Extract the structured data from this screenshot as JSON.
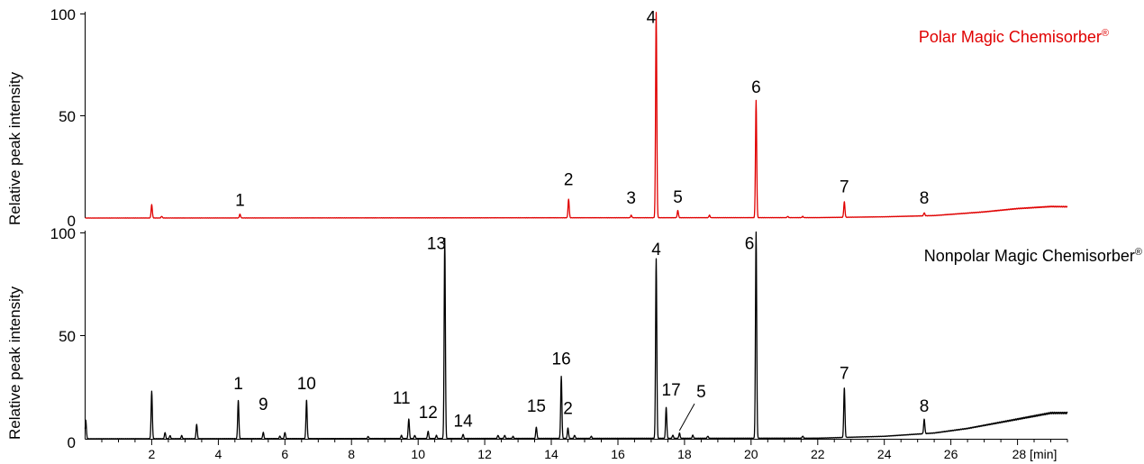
{
  "chart_data": [
    {
      "type": "line",
      "panel": "top",
      "legend_text": "Polar Magic Chemisorber",
      "legend_sup": "®",
      "legend_placement": "top-right",
      "color": "#e00000",
      "ylabel": "Relative peak intensity",
      "y_ticks": [
        "100",
        "50",
        "0"
      ],
      "ylim": [
        0,
        100
      ],
      "xlim": [
        0,
        29.5
      ],
      "baseline": 0,
      "peaks": [
        {
          "x": 2.0,
          "y": 6.5
        },
        {
          "x": 2.3,
          "y": 0.8
        },
        {
          "x": 4.65,
          "y": 1.8
        },
        {
          "x": 14.52,
          "y": 9
        },
        {
          "x": 16.4,
          "y": 1.2
        },
        {
          "x": 17.15,
          "y": 100
        },
        {
          "x": 17.8,
          "y": 3.5
        },
        {
          "x": 18.75,
          "y": 1.2
        },
        {
          "x": 20.15,
          "y": 57
        },
        {
          "x": 21.1,
          "y": 0.6
        },
        {
          "x": 21.55,
          "y": 0.6
        },
        {
          "x": 22.8,
          "y": 7.5
        },
        {
          "x": 25.2,
          "y": 1.5
        }
      ],
      "drift": [
        {
          "x": 0,
          "y": 0
        },
        {
          "x": 22,
          "y": 0.2
        },
        {
          "x": 24,
          "y": 0.6
        },
        {
          "x": 25.5,
          "y": 1.2
        },
        {
          "x": 27,
          "y": 3.0
        },
        {
          "x": 28,
          "y": 4.6
        },
        {
          "x": 29,
          "y": 5.6
        },
        {
          "x": 29.5,
          "y": 5.5
        }
      ],
      "peak_labels": [
        {
          "text": "1",
          "x": 4.65,
          "y": 6
        },
        {
          "text": "2",
          "x": 14.52,
          "y": 16
        },
        {
          "text": "3",
          "x": 16.4,
          "y": 7
        },
        {
          "text": "4",
          "x": 17.0,
          "y": 95
        },
        {
          "text": "5",
          "x": 17.8,
          "y": 7.5
        },
        {
          "text": "6",
          "x": 20.15,
          "y": 61
        },
        {
          "text": "7",
          "x": 22.8,
          "y": 12.5
        },
        {
          "text": "8",
          "x": 25.2,
          "y": 7
        }
      ]
    },
    {
      "type": "line",
      "panel": "bottom",
      "legend_text": "Nonpolar Magic Chemisorber",
      "legend_sup": "®",
      "legend_placement": "top-right",
      "color": "#000000",
      "ylabel": "Relative peak intensity",
      "y_ticks": [
        "100",
        "50",
        "0"
      ],
      "ylim": [
        0,
        100
      ],
      "xlim": [
        0,
        29.5
      ],
      "baseline": 0,
      "peaks": [
        {
          "x": 0.02,
          "y": 9
        },
        {
          "x": 2.0,
          "y": 23
        },
        {
          "x": 2.4,
          "y": 3
        },
        {
          "x": 2.55,
          "y": 1.5
        },
        {
          "x": 2.9,
          "y": 1.5
        },
        {
          "x": 3.35,
          "y": 7
        },
        {
          "x": 4.6,
          "y": 18.5
        },
        {
          "x": 5.35,
          "y": 3
        },
        {
          "x": 5.85,
          "y": 1.2
        },
        {
          "x": 6.0,
          "y": 3
        },
        {
          "x": 6.65,
          "y": 18.5
        },
        {
          "x": 8.5,
          "y": 1
        },
        {
          "x": 9.5,
          "y": 1.5
        },
        {
          "x": 9.72,
          "y": 9.5
        },
        {
          "x": 9.9,
          "y": 1.5
        },
        {
          "x": 10.3,
          "y": 3.5
        },
        {
          "x": 10.55,
          "y": 1.5
        },
        {
          "x": 10.8,
          "y": 97
        },
        {
          "x": 11.35,
          "y": 2
        },
        {
          "x": 12.4,
          "y": 1.5
        },
        {
          "x": 12.6,
          "y": 1.5
        },
        {
          "x": 12.85,
          "y": 1
        },
        {
          "x": 13.55,
          "y": 5.5
        },
        {
          "x": 14.3,
          "y": 30
        },
        {
          "x": 14.5,
          "y": 5
        },
        {
          "x": 14.7,
          "y": 1.5
        },
        {
          "x": 15.2,
          "y": 1
        },
        {
          "x": 17.15,
          "y": 87
        },
        {
          "x": 17.45,
          "y": 15
        },
        {
          "x": 17.65,
          "y": 1.5
        },
        {
          "x": 17.85,
          "y": 2.5
        },
        {
          "x": 18.25,
          "y": 1.5
        },
        {
          "x": 18.7,
          "y": 1
        },
        {
          "x": 20.15,
          "y": 100
        },
        {
          "x": 21.55,
          "y": 1
        },
        {
          "x": 22.8,
          "y": 24
        },
        {
          "x": 25.2,
          "y": 7
        }
      ],
      "drift": [
        {
          "x": 0,
          "y": 0
        },
        {
          "x": 22,
          "y": 0.3
        },
        {
          "x": 24,
          "y": 1.2
        },
        {
          "x": 25.5,
          "y": 2.8
        },
        {
          "x": 26.5,
          "y": 5.0
        },
        {
          "x": 27.5,
          "y": 8.0
        },
        {
          "x": 28.5,
          "y": 11.0
        },
        {
          "x": 29.0,
          "y": 12.5
        },
        {
          "x": 29.5,
          "y": 12.5
        }
      ],
      "peak_labels": [
        {
          "text": "1",
          "x": 4.6,
          "y": 24
        },
        {
          "text": "9",
          "x": 5.35,
          "y": 14
        },
        {
          "text": "10",
          "x": 6.65,
          "y": 24
        },
        {
          "text": "11",
          "x": 9.5,
          "y": 17
        },
        {
          "text": "12",
          "x": 10.3,
          "y": 10
        },
        {
          "text": "13",
          "x": 10.55,
          "y": 92
        },
        {
          "text": "14",
          "x": 11.35,
          "y": 6
        },
        {
          "text": "15",
          "x": 13.55,
          "y": 13
        },
        {
          "text": "16",
          "x": 14.3,
          "y": 36
        },
        {
          "text": "2",
          "x": 14.5,
          "y": 12
        },
        {
          "text": "4",
          "x": 17.15,
          "y": 89
        },
        {
          "text": "17",
          "x": 17.6,
          "y": 21
        },
        {
          "text": "5",
          "x": 18.5,
          "y": 20
        },
        {
          "text": "6",
          "x": 19.95,
          "y": 92
        },
        {
          "text": "7",
          "x": 22.8,
          "y": 29
        },
        {
          "text": "8",
          "x": 25.2,
          "y": 13
        }
      ],
      "pointer": {
        "from_x": 18.3,
        "from_y": 17,
        "to_x": 17.85,
        "to_y": 4
      }
    }
  ],
  "x_axis": {
    "tick_labels": [
      {
        "x": 2,
        "text": "2"
      },
      {
        "x": 4,
        "text": "4"
      },
      {
        "x": 6,
        "text": "6"
      },
      {
        "x": 8,
        "text": "8"
      },
      {
        "x": 10,
        "text": "10"
      },
      {
        "x": 12,
        "text": "12"
      },
      {
        "x": 14,
        "text": "14"
      },
      {
        "x": 16,
        "text": "16"
      },
      {
        "x": 18,
        "text": "18"
      },
      {
        "x": 20,
        "text": "20"
      },
      {
        "x": 22,
        "text": "22"
      },
      {
        "x": 24,
        "text": "24"
      },
      {
        "x": 26,
        "text": "26"
      },
      {
        "x": 28,
        "text": "28 [min]"
      }
    ],
    "minor_step": 0.5,
    "xlim": [
      0,
      29.5
    ]
  }
}
